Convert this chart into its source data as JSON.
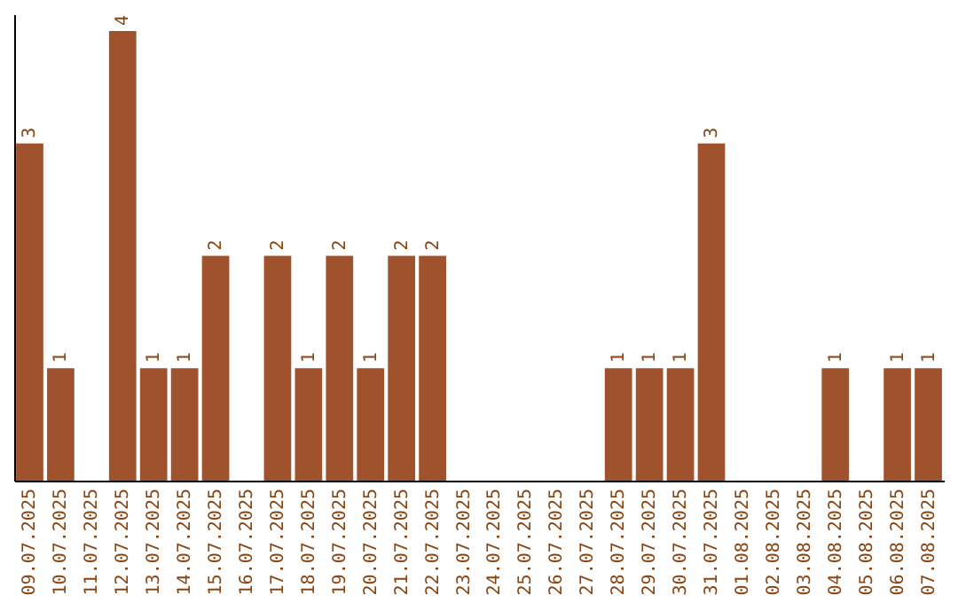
{
  "chart_data": {
    "type": "bar",
    "categories": [
      "09.07.2025",
      "10.07.2025",
      "11.07.2025",
      "12.07.2025",
      "13.07.2025",
      "14.07.2025",
      "15.07.2025",
      "16.07.2025",
      "17.07.2025",
      "18.07.2025",
      "19.07.2025",
      "20.07.2025",
      "21.07.2025",
      "22.07.2025",
      "23.07.2025",
      "24.07.2025",
      "25.07.2025",
      "26.07.2025",
      "27.07.2025",
      "28.07.2025",
      "29.07.2025",
      "30.07.2025",
      "31.07.2025",
      "01.08.2025",
      "02.08.2025",
      "03.08.2025",
      "04.08.2025",
      "05.08.2025",
      "06.08.2025",
      "07.08.2025"
    ],
    "values": [
      3,
      1,
      0,
      4,
      1,
      1,
      2,
      0,
      2,
      1,
      2,
      1,
      2,
      2,
      0,
      0,
      0,
      0,
      0,
      1,
      1,
      1,
      3,
      0,
      0,
      0,
      1,
      0,
      1,
      1
    ],
    "value_labels": [
      "3",
      "1",
      null,
      "4",
      "1",
      "1",
      "2",
      null,
      "2",
      "1",
      "2",
      "1",
      "2",
      "2",
      null,
      null,
      null,
      null,
      null,
      "1",
      "1",
      "1",
      "3",
      null,
      null,
      null,
      "1",
      null,
      "1",
      "1"
    ],
    "color": "#a0522d",
    "ylim": [
      0,
      4.15
    ],
    "tick_labels": "x",
    "grid": false
  }
}
